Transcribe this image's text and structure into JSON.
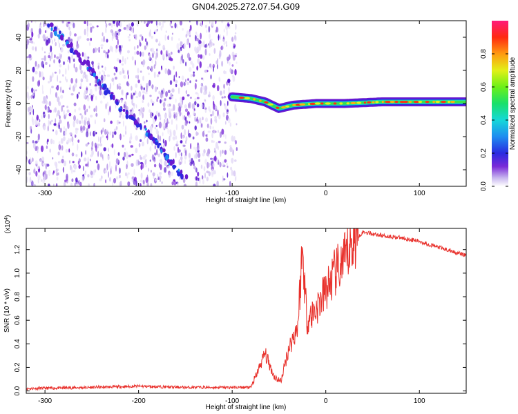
{
  "title": "GN04.2025.272.07.54.G09",
  "chart_data": [
    {
      "type": "heatmap",
      "xlabel": "Height of straight line (km)",
      "ylabel": "Frequency (Hz)",
      "xlim": [
        -320,
        150
      ],
      "ylim": [
        -50,
        50
      ],
      "x_ticks": [
        "-300",
        "-200",
        "-100",
        "0",
        "100"
      ],
      "y_ticks": [
        "-40",
        "-20",
        "0",
        "20",
        "40"
      ],
      "noise_region_x": [
        -320,
        -95
      ],
      "diagonal_trace": [
        [
          -295,
          48
        ],
        [
          -265,
          30
        ],
        [
          -240,
          12
        ],
        [
          -215,
          -5
        ],
        [
          -190,
          -18
        ],
        [
          -170,
          -32
        ],
        [
          -150,
          -46
        ]
      ],
      "ridge": [
        [
          -100,
          4
        ],
        [
          -80,
          3
        ],
        [
          -65,
          1
        ],
        [
          -50,
          -3
        ],
        [
          -35,
          -1
        ],
        [
          -10,
          0
        ],
        [
          20,
          0
        ],
        [
          60,
          1
        ],
        [
          100,
          1
        ],
        [
          150,
          1
        ]
      ],
      "colorbar": {
        "label": "Normalized spectral amplitude",
        "ticks": [
          "0.0",
          "0.2",
          "0.4",
          "0.6",
          "0.8"
        ],
        "range": [
          0,
          1
        ]
      }
    },
    {
      "type": "line",
      "xlabel": "Height of straight line (km)",
      "ylabel": "SNR (10 * v/v)",
      "y_exponent": "(x10",
      "y_exponent_power": "4",
      "xlim": [
        -320,
        150
      ],
      "ylim": [
        -0.02,
        1.38
      ],
      "x_ticks": [
        "-300",
        "-200",
        "-100",
        "0",
        "100"
      ],
      "y_ticks": [
        "0.0",
        "0.2",
        "0.4",
        "0.6",
        "0.8",
        "1.0",
        "1.2"
      ],
      "series": [
        {
          "color": "#e8302b",
          "points": [
            [
              -320,
              0.02
            ],
            [
              -250,
              0.03
            ],
            [
              -200,
              0.04
            ],
            [
              -150,
              0.03
            ],
            [
              -100,
              0.03
            ],
            [
              -80,
              0.03
            ],
            [
              -75,
              0.12
            ],
            [
              -65,
              0.32
            ],
            [
              -55,
              0.12
            ],
            [
              -48,
              0.08
            ],
            [
              -40,
              0.35
            ],
            [
              -30,
              0.55
            ],
            [
              -25,
              1.2
            ],
            [
              -20,
              0.6
            ],
            [
              -10,
              0.7
            ],
            [
              0,
              0.85
            ],
            [
              10,
              1.0
            ],
            [
              20,
              1.1
            ],
            [
              30,
              1.28
            ],
            [
              40,
              1.35
            ],
            [
              60,
              1.32
            ],
            [
              80,
              1.3
            ],
            [
              100,
              1.27
            ],
            [
              120,
              1.22
            ],
            [
              150,
              1.15
            ]
          ]
        }
      ]
    }
  ]
}
